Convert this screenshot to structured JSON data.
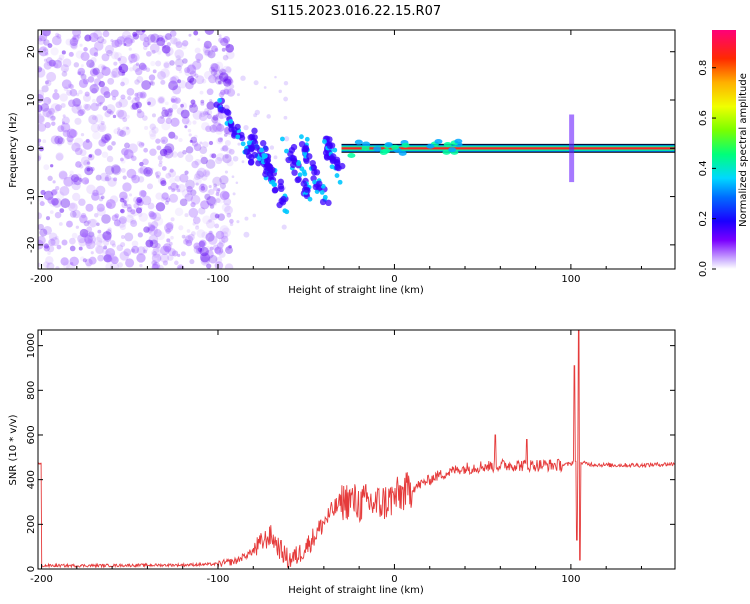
{
  "figure_title": "S115.2023.016.22.15.R07",
  "colors": {
    "spectrogram_low": "#e8d8ff",
    "spectrogram_mid": "#3a00ff",
    "snr_line": "#e53b3b",
    "grid": "#c9c9c9"
  },
  "chart_data": [
    {
      "type": "heatmap",
      "title": "S115.2023.016.22.15.R07",
      "xlabel": "Height of straight line (km)",
      "ylabel": "Frequency (Hz)",
      "xlim": [
        -202,
        159
      ],
      "ylim": [
        -25,
        24.5
      ],
      "x_ticks": [
        -200,
        -100,
        0,
        100
      ],
      "y_ticks": [
        20,
        10,
        0,
        -10,
        -20
      ],
      "grid": false,
      "colorbar": {
        "label": "Normalized spectral amplitude",
        "ticks": [
          0.0,
          0.2,
          0.4,
          0.6,
          0.8
        ],
        "range": [
          0.0,
          0.95
        ]
      },
      "features": [
        {
          "name": "noise-field",
          "x_range": [
            -202,
            -100
          ],
          "y_range": [
            -25,
            24.5
          ],
          "amplitude": 0.12
        },
        {
          "name": "transition-cluster",
          "x_range": [
            -100,
            -30
          ],
          "y_range": [
            -12,
            10
          ],
          "amplitude": 0.45
        },
        {
          "name": "carrier-line",
          "x_range": [
            -30,
            159
          ],
          "y_value": 0,
          "amplitude": 0.9
        },
        {
          "name": "spike",
          "x_value": 100,
          "y_range": [
            -7,
            7
          ],
          "amplitude": 0.6
        }
      ]
    },
    {
      "type": "line",
      "xlabel": "Height of straight line (km)",
      "ylabel": "SNR (10 * v/v)",
      "xlim": [
        -202,
        159
      ],
      "ylim": [
        0,
        1070
      ],
      "x_ticks": [
        -200,
        -100,
        0,
        100
      ],
      "y_ticks": [
        0,
        200,
        400,
        600,
        800,
        1000
      ],
      "grid": false,
      "series": [
        {
          "color": "#e53b3b",
          "x": [
            -200,
            -180,
            -160,
            -140,
            -120,
            -100,
            -90,
            -80,
            -75,
            -70,
            -65,
            -60,
            -55,
            -50,
            -45,
            -40,
            -35,
            -30,
            -25,
            -20,
            -15,
            -10,
            -5,
            0,
            5,
            10,
            15,
            20,
            25,
            30,
            35,
            40,
            45,
            50,
            55,
            60,
            65,
            70,
            75,
            80,
            85,
            90,
            95,
            100,
            102,
            104,
            106,
            110,
            120,
            130,
            140,
            150,
            159
          ],
          "y": [
            15,
            15,
            16,
            17,
            18,
            22,
            35,
            80,
            120,
            150,
            90,
            40,
            60,
            100,
            150,
            210,
            260,
            300,
            310,
            290,
            300,
            290,
            300,
            320,
            340,
            360,
            380,
            400,
            420,
            430,
            445,
            450,
            455,
            460,
            460,
            465,
            465,
            465,
            463,
            465,
            465,
            465,
            465,
            470,
            490,
            460,
            475,
            470,
            465,
            465,
            465,
            468,
            470
          ],
          "spikes": [
            {
              "x": 57,
              "y": 600
            },
            {
              "x": 75,
              "y": 580
            },
            {
              "x": 102,
              "y": 910
            },
            {
              "x": 104.5,
              "y": 1070
            },
            {
              "x": 103.5,
              "y": 130
            },
            {
              "x": 105,
              "y": 40
            }
          ]
        }
      ]
    }
  ]
}
